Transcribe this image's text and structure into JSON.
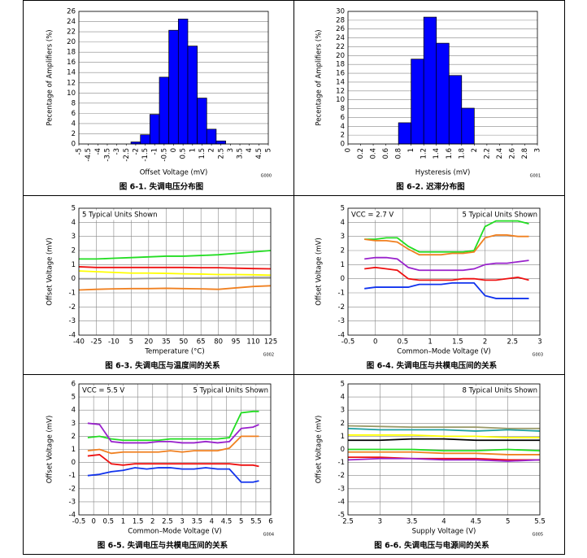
{
  "chart_data": [
    {
      "type": "histogram",
      "caption": "图 6-1. 失调电压分布图",
      "code": "G000",
      "xlabel": "Offset Voltage (mV)",
      "ylabel": "Pecentage of Amplifiers (%)",
      "color": "#0000ff",
      "grid": "y",
      "xtick_rotation": 90,
      "bins": [
        -2.25,
        -1.75,
        -1.25,
        -0.75,
        -0.25,
        0.25,
        0.75,
        1.25,
        1.75,
        2.25,
        2.75
      ],
      "values": [
        0.4,
        1.8,
        5.8,
        13.1,
        22.3,
        24.5,
        19.2,
        9.0,
        2.9,
        0.6
      ],
      "xlim": [
        -5,
        5
      ],
      "xticks": [
        -5,
        -4.5,
        -4,
        -3.5,
        -3,
        -2.5,
        -2,
        -1.5,
        -1,
        -0.5,
        0,
        0.5,
        1,
        1.5,
        2,
        2.5,
        3,
        3.5,
        4,
        4.5,
        5
      ],
      "ylim": [
        0,
        26
      ],
      "yticks": [
        0,
        2,
        4,
        6,
        8,
        10,
        12,
        14,
        16,
        18,
        20,
        22,
        24,
        26
      ]
    },
    {
      "type": "histogram",
      "caption": "图 6-2. 迟滞分布图",
      "code": "G001",
      "xlabel": "Hysteresis (mV)",
      "ylabel": "Pecentage of Amplifiers (%)",
      "color": "#0000ff",
      "grid": "y",
      "xtick_rotation": 90,
      "bins": [
        0.8,
        1.0,
        1.2,
        1.4,
        1.6,
        1.8,
        2.0
      ],
      "values": [
        4.8,
        19.2,
        28.7,
        22.8,
        15.5,
        8.1
      ],
      "xlim": [
        0,
        3
      ],
      "xticks": [
        0,
        0.2,
        0.4,
        0.6,
        0.8,
        1,
        1.2,
        1.4,
        1.6,
        1.8,
        2,
        2.2,
        2.4,
        2.6,
        2.8,
        3
      ],
      "ylim": [
        0,
        30
      ],
      "yticks": [
        0,
        2,
        4,
        6,
        8,
        10,
        12,
        14,
        16,
        18,
        20,
        22,
        24,
        26,
        28,
        30
      ]
    },
    {
      "type": "line",
      "caption": "图 6-3. 失调电压与温度间的关系",
      "code": "G002",
      "xlabel": "Temperature (°C)",
      "ylabel": "Offset Voltage (mV)",
      "grid": "both",
      "annotations": [
        "5 Typical Units Shown"
      ],
      "x": [
        -40,
        -25,
        -10,
        5,
        20,
        35,
        50,
        65,
        80,
        95,
        110,
        125
      ],
      "series": [
        {
          "color": "#22dd22",
          "values": [
            1.4,
            1.4,
            1.45,
            1.5,
            1.55,
            1.6,
            1.6,
            1.65,
            1.7,
            1.8,
            1.9,
            2.0
          ]
        },
        {
          "color": "#ee1111",
          "values": [
            0.85,
            0.8,
            0.8,
            0.8,
            0.8,
            0.8,
            0.8,
            0.78,
            0.78,
            0.75,
            0.72,
            0.7
          ]
        },
        {
          "color": "#ffff00",
          "values": [
            0.55,
            0.5,
            0.45,
            0.4,
            0.4,
            0.38,
            0.35,
            0.33,
            0.3,
            0.3,
            0.28,
            0.25
          ]
        },
        {
          "color": "#999999",
          "values": [
            0.0,
            0.0,
            0.0,
            0.0,
            0.02,
            0.03,
            0.05,
            0.05,
            0.07,
            0.08,
            0.1,
            0.1
          ]
        },
        {
          "color": "#f08020",
          "values": [
            -0.8,
            -0.75,
            -0.72,
            -0.7,
            -0.7,
            -0.68,
            -0.7,
            -0.72,
            -0.75,
            -0.65,
            -0.55,
            -0.5
          ]
        }
      ],
      "xlim": [
        -40,
        125
      ],
      "xticks": [
        -40,
        -25,
        -10,
        5,
        20,
        35,
        50,
        65,
        80,
        95,
        110,
        125
      ],
      "ylim": [
        -4,
        5
      ],
      "yticks": [
        -4,
        -3,
        -2,
        -1,
        0,
        1,
        2,
        3,
        4,
        5
      ]
    },
    {
      "type": "line",
      "caption": "图 6-4. 失调电压与共模电压间的关系",
      "code": "G003",
      "xlabel": "Common–Mode Voltage (V)",
      "ylabel": "Offset Voltage (mV)",
      "grid": "both",
      "annotations": [
        "VCC = 2.7 V",
        "5 Typical Units Shown"
      ],
      "x": [
        -0.2,
        0,
        0.2,
        0.4,
        0.6,
        0.8,
        1,
        1.2,
        1.4,
        1.6,
        1.8,
        2,
        2.2,
        2.4,
        2.6,
        2.8
      ],
      "series": [
        {
          "color": "#22dd22",
          "values": [
            2.8,
            2.8,
            2.9,
            2.9,
            2.3,
            1.9,
            1.9,
            1.9,
            1.9,
            1.9,
            2.0,
            3.7,
            4.1,
            4.1,
            4.1,
            3.9
          ]
        },
        {
          "color": "#f08020",
          "values": [
            2.8,
            2.7,
            2.7,
            2.6,
            2.1,
            1.7,
            1.7,
            1.7,
            1.8,
            1.8,
            1.9,
            2.9,
            3.1,
            3.1,
            3.0,
            3.0
          ]
        },
        {
          "color": "#9922cc",
          "values": [
            1.4,
            1.5,
            1.5,
            1.4,
            0.8,
            0.6,
            0.6,
            0.6,
            0.6,
            0.6,
            0.7,
            1.0,
            1.1,
            1.1,
            1.2,
            1.3
          ]
        },
        {
          "color": "#ee1111",
          "values": [
            0.7,
            0.8,
            0.7,
            0.6,
            0.0,
            -0.1,
            -0.1,
            -0.1,
            -0.1,
            0.0,
            0.0,
            -0.1,
            -0.1,
            0.0,
            0.1,
            -0.1
          ]
        },
        {
          "color": "#1133ee",
          "values": [
            -0.7,
            -0.6,
            -0.6,
            -0.6,
            -0.6,
            -0.4,
            -0.4,
            -0.4,
            -0.3,
            -0.3,
            -0.3,
            -1.2,
            -1.4,
            -1.4,
            -1.4,
            -1.4
          ]
        }
      ],
      "xlim": [
        -0.5,
        3
      ],
      "xticks": [
        -0.5,
        0,
        0.5,
        1,
        1.5,
        2,
        2.5,
        3
      ],
      "ylim": [
        -4,
        5
      ],
      "yticks": [
        -4,
        -3,
        -2,
        -1,
        0,
        1,
        2,
        3,
        4,
        5
      ]
    },
    {
      "type": "line",
      "caption": "图 6-5. 失调电压与共模电压间的关系",
      "code": "G004",
      "xlabel": "Common–Mode Voltage (V)",
      "ylabel": "Offset Voltage (mV)",
      "grid": "both",
      "annotations": [
        "VCC = 5.5 V",
        "5 Typical Units Shown"
      ],
      "x": [
        -0.2,
        0.2,
        0.6,
        1,
        1.4,
        1.8,
        2.2,
        2.6,
        3,
        3.4,
        3.8,
        4.2,
        4.6,
        5,
        5.4,
        5.6
      ],
      "series": [
        {
          "color": "#22dd22",
          "values": [
            1.9,
            2.0,
            1.8,
            1.7,
            1.7,
            1.7,
            1.7,
            1.8,
            1.8,
            1.8,
            1.8,
            1.8,
            1.9,
            3.8,
            3.9,
            3.9
          ]
        },
        {
          "color": "#9922cc",
          "values": [
            3.0,
            2.9,
            1.6,
            1.5,
            1.5,
            1.5,
            1.6,
            1.6,
            1.5,
            1.5,
            1.6,
            1.5,
            1.6,
            2.6,
            2.7,
            2.9
          ]
        },
        {
          "color": "#f08020",
          "values": [
            0.9,
            1.0,
            0.7,
            0.8,
            0.8,
            0.8,
            0.8,
            0.9,
            0.8,
            0.9,
            0.9,
            0.9,
            1.1,
            2.0,
            2.0,
            2.0
          ]
        },
        {
          "color": "#ee1111",
          "values": [
            0.5,
            0.6,
            -0.1,
            -0.2,
            -0.1,
            -0.1,
            -0.1,
            -0.1,
            -0.1,
            -0.1,
            -0.1,
            -0.1,
            -0.1,
            -0.2,
            -0.2,
            -0.3
          ]
        },
        {
          "color": "#1133ee",
          "values": [
            -1.0,
            -0.9,
            -0.7,
            -0.6,
            -0.4,
            -0.5,
            -0.4,
            -0.4,
            -0.5,
            -0.5,
            -0.4,
            -0.5,
            -0.5,
            -1.5,
            -1.5,
            -1.4
          ]
        }
      ],
      "xlim": [
        -0.5,
        6
      ],
      "xticks": [
        -0.5,
        0,
        0.5,
        1,
        1.5,
        2,
        2.5,
        3,
        3.5,
        4,
        4.5,
        5,
        5.5,
        6
      ],
      "ylim": [
        -4,
        6
      ],
      "yticks": [
        -4,
        -3,
        -2,
        -1,
        0,
        1,
        2,
        3,
        4,
        5,
        6
      ]
    },
    {
      "type": "line",
      "caption": "图 6-6. 失调电压与电源间的关系",
      "code": "G005",
      "xlabel": "Supply Voltage (V)",
      "ylabel": "Offset Voltage (mV)",
      "grid": "both",
      "annotations": [
        "8 Typical Units Shown"
      ],
      "x": [
        2.5,
        3,
        3.5,
        4,
        4.5,
        5,
        5.5
      ],
      "series": [
        {
          "color": "#999966",
          "values": [
            1.8,
            1.75,
            1.7,
            1.7,
            1.7,
            1.6,
            1.6
          ]
        },
        {
          "color": "#20a0a0",
          "values": [
            1.6,
            1.5,
            1.5,
            1.5,
            1.4,
            1.5,
            1.4
          ]
        },
        {
          "color": "#ffff00",
          "values": [
            1.1,
            1.1,
            1.1,
            1.0,
            1.0,
            0.9,
            0.9
          ]
        },
        {
          "color": "#000000",
          "values": [
            0.7,
            0.7,
            0.8,
            0.8,
            0.7,
            0.7,
            0.7
          ]
        },
        {
          "color": "#22dd22",
          "values": [
            0.0,
            0.0,
            0.0,
            -0.1,
            -0.1,
            0.0,
            -0.1
          ]
        },
        {
          "color": "#f08020",
          "values": [
            -0.2,
            -0.2,
            -0.2,
            -0.3,
            -0.3,
            -0.4,
            -0.4
          ]
        },
        {
          "color": "#ee1111",
          "values": [
            -0.6,
            -0.6,
            -0.7,
            -0.7,
            -0.7,
            -0.8,
            -0.8
          ]
        },
        {
          "color": "#9922cc",
          "values": [
            -0.8,
            -0.7,
            -0.7,
            -0.8,
            -0.8,
            -0.9,
            -0.8
          ]
        }
      ],
      "xlim": [
        2.5,
        5.5
      ],
      "xticks": [
        2.5,
        3,
        3.5,
        4,
        4.5,
        5,
        5.5
      ],
      "ylim": [
        -5,
        5
      ],
      "yticks": [
        -5,
        -4,
        -3,
        -2,
        -1,
        0,
        1,
        2,
        3,
        4,
        5
      ]
    }
  ]
}
